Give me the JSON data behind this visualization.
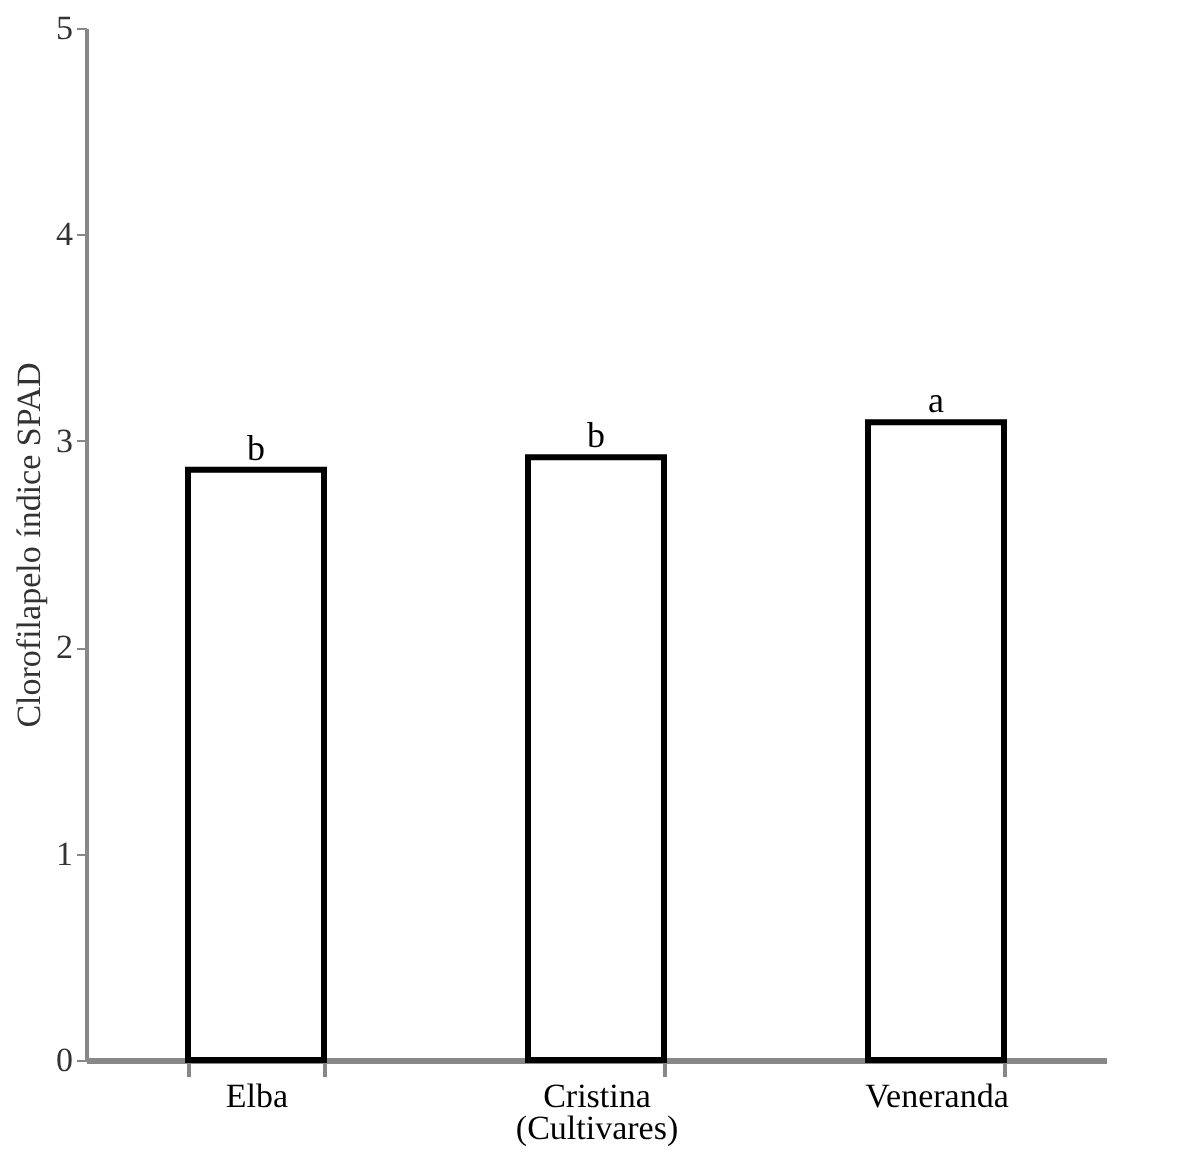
{
  "chart_data": {
    "type": "bar",
    "categories": [
      "Elba",
      "Cristina",
      "Veneranda"
    ],
    "values": [
      2.86,
      2.92,
      3.09
    ],
    "color": "#ffffff",
    "xlabel": "(Cultivares)",
    "ylabel": "Clorofilapelo índice SPAD",
    "ylim": [
      0,
      5
    ],
    "yticks": [
      0,
      1,
      2,
      3,
      4,
      5
    ],
    "grid": false,
    "annotations": [
      {
        "text": "b",
        "x": "Elba",
        "y": 2.86
      },
      {
        "text": "b",
        "x": "Cristina",
        "y": 2.92
      },
      {
        "text": "a",
        "x": "Veneranda",
        "y": 3.09
      }
    ]
  }
}
